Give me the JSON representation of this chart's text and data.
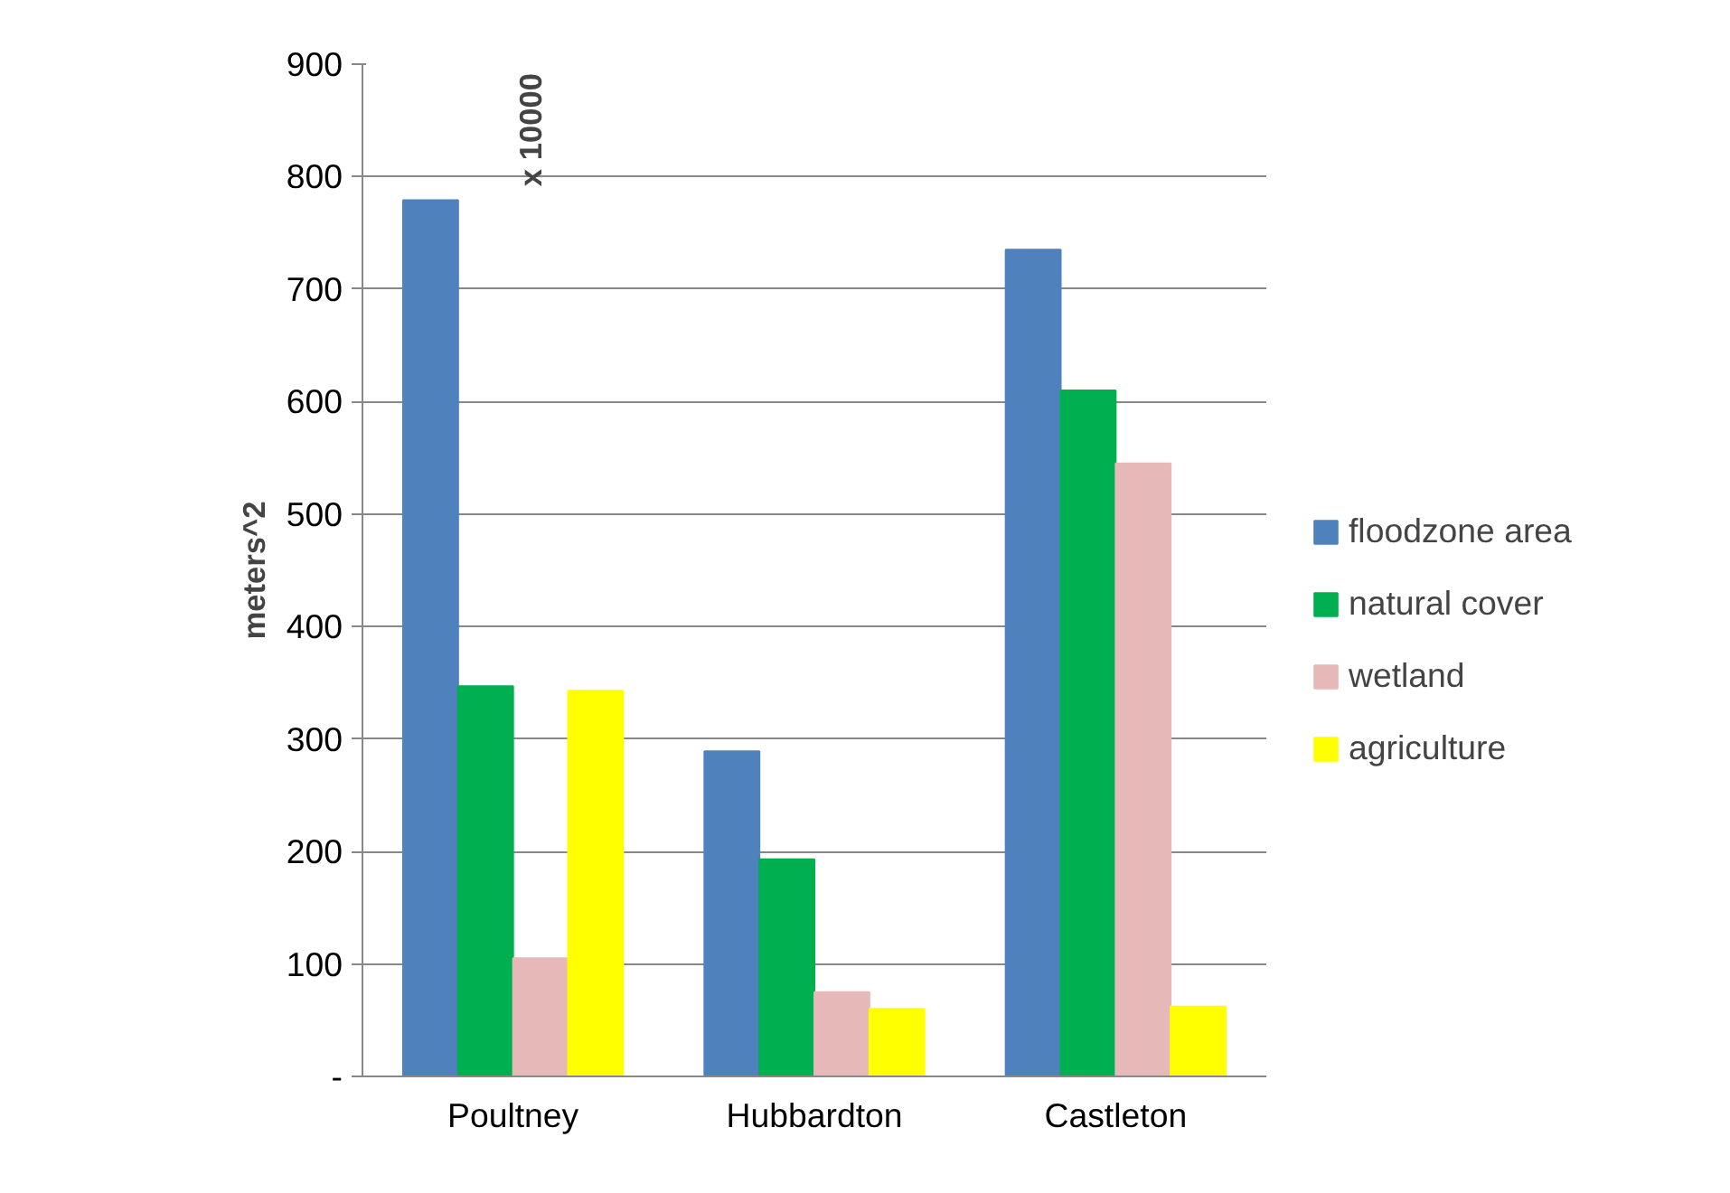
{
  "chart_data": {
    "type": "bar",
    "categories": [
      "Poultney",
      "Hubbardton",
      "Castleton"
    ],
    "ylabel": "meters^2",
    "annotations": [
      "x 10000"
    ],
    "series": [
      {
        "name": "floodzone area",
        "color": "#4f81bd",
        "values": [
          779,
          289,
          735
        ]
      },
      {
        "name": "natural cover",
        "color": "#00b050",
        "values": [
          347,
          193,
          610
        ]
      },
      {
        "name": "wetland",
        "color": "#e6b9b8",
        "values": [
          105,
          75,
          545
        ]
      },
      {
        "name": "agriculture",
        "color": "#ffff00",
        "values": [
          343,
          60,
          62
        ]
      }
    ],
    "ylim": [
      0,
      900
    ],
    "yticks": [
      {
        "value": 0,
        "label": "-"
      },
      100,
      200,
      300,
      400,
      500,
      600,
      700,
      800,
      900
    ],
    "grid": "y",
    "legend": "right"
  }
}
